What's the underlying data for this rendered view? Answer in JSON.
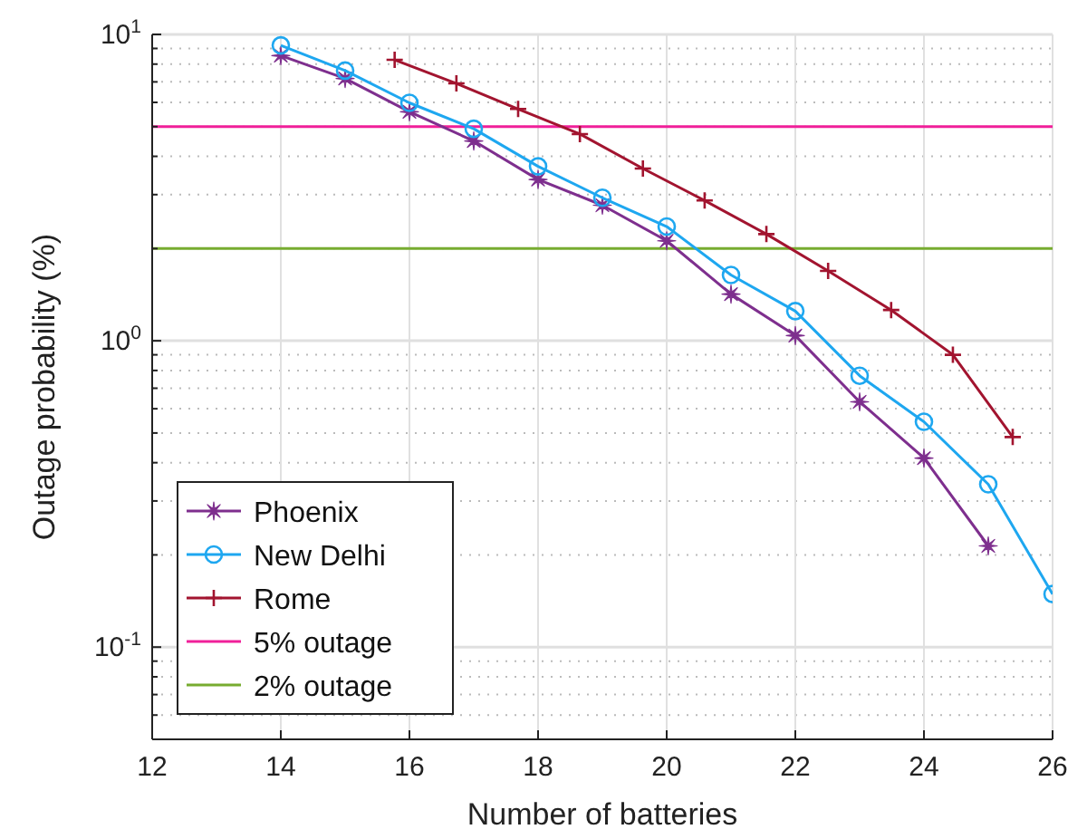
{
  "chart_data": {
    "type": "line",
    "xlabel": "Number of batteries",
    "ylabel": "Outage probability (%)",
    "log": "y",
    "grid": true,
    "legend": "bottom left",
    "xlim": [
      12,
      26
    ],
    "ylim": [
      0.05,
      10
    ],
    "xticks": [
      12,
      14,
      16,
      18,
      20,
      22,
      24,
      26
    ],
    "yticks": [
      {
        "value": 0.1,
        "label": "10$^{-1}$"
      },
      {
        "value": 1,
        "label": "10$^{0}$"
      },
      {
        "value": 10,
        "label": "10$^{1}$"
      }
    ],
    "series": [
      {
        "name": "Phoenix",
        "color": "#7e2f8e",
        "marker": "star",
        "x": [
          14,
          15,
          16,
          17,
          18,
          19,
          20,
          21,
          22,
          23,
          24,
          25
        ],
        "values": [
          8.53,
          7.18,
          5.59,
          4.49,
          3.36,
          2.77,
          2.12,
          1.42,
          1.04,
          0.632,
          0.414,
          0.214
        ]
      },
      {
        "name": "New Delhi",
        "color": "#1ea7f0",
        "marker": "circle",
        "x": [
          14,
          15,
          16,
          17,
          18,
          19,
          20,
          21,
          22,
          23,
          24,
          25,
          26
        ],
        "values": [
          9.21,
          7.62,
          5.98,
          4.92,
          3.71,
          2.93,
          2.36,
          1.64,
          1.25,
          0.769,
          0.544,
          0.34,
          0.149
        ]
      },
      {
        "name": "Rome",
        "color": "#a2142f",
        "marker": "cross",
        "x": [
          15.77,
          16.73,
          17.69,
          18.65,
          19.63,
          20.59,
          21.55,
          22.51,
          23.49,
          24.45,
          25.38
        ],
        "values": [
          8.26,
          6.92,
          5.71,
          4.73,
          3.65,
          2.87,
          2.23,
          1.69,
          1.26,
          0.9,
          0.485
        ]
      }
    ],
    "ref_lines": [
      {
        "axis": "y",
        "value": 5,
        "label": "5% outage",
        "color": "#f0209a"
      },
      {
        "axis": "y",
        "value": 2,
        "label": "2% outage",
        "color": "#77ac30"
      }
    ]
  }
}
